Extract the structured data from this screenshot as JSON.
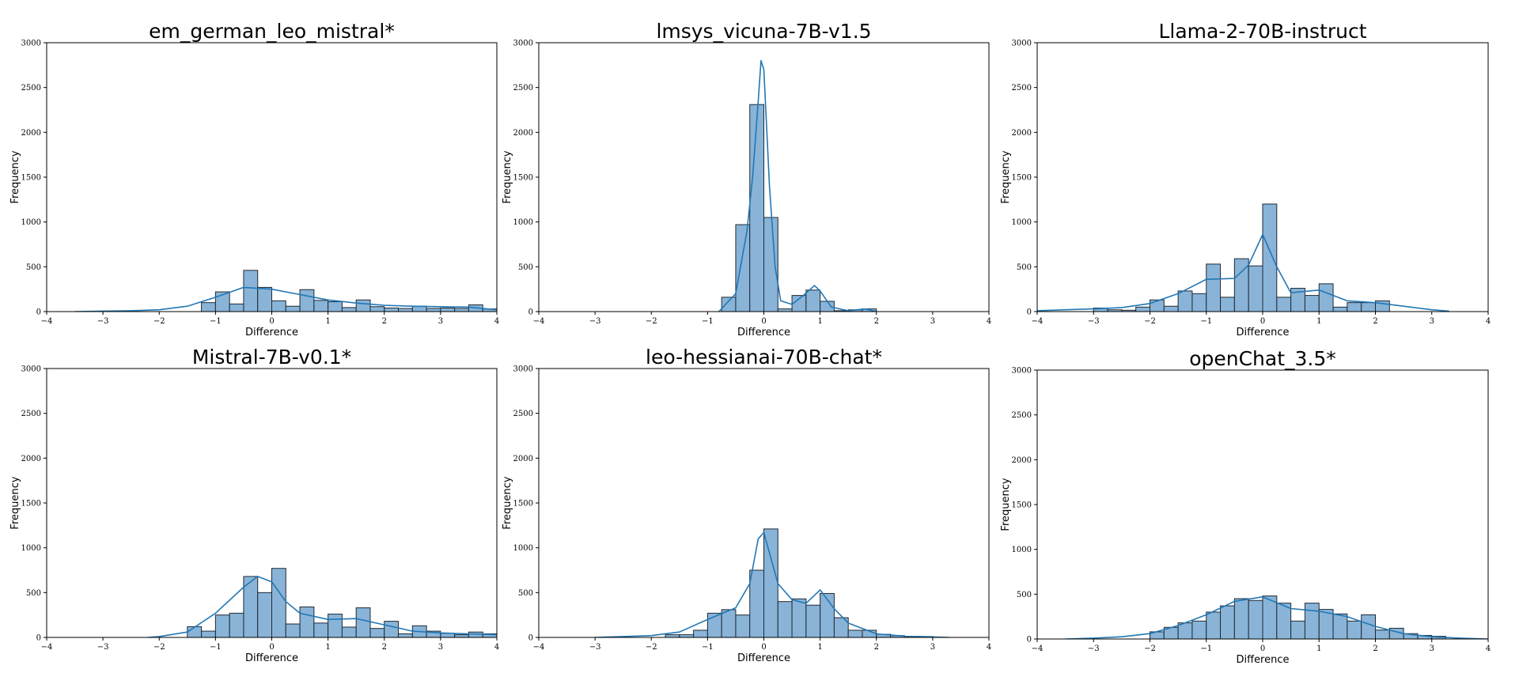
{
  "chart_data": [
    {
      "type": "histogram",
      "title": "em_german_leo_mistral*",
      "xlabel": "Difference",
      "ylabel": "Frequency",
      "xlim": [
        -4,
        4
      ],
      "ylim": [
        0,
        3000
      ],
      "xticks": [
        "−4",
        "−3",
        "−2",
        "−1",
        "0",
        "1",
        "2",
        "3",
        "4"
      ],
      "yticks": [
        "0",
        "500",
        "1000",
        "1500",
        "2000",
        "2500",
        "3000"
      ],
      "bar_edges": [
        -1.25,
        -1.0,
        -0.75,
        -0.5,
        -0.25,
        0.0,
        0.25,
        0.5,
        0.75,
        1.0,
        1.25,
        1.5,
        1.75,
        2.0,
        2.25,
        2.5,
        2.75,
        3.0,
        3.25,
        3.5,
        3.75,
        4.0
      ],
      "values": [
        100,
        220,
        85,
        460,
        270,
        120,
        60,
        245,
        125,
        110,
        45,
        130,
        55,
        40,
        35,
        60,
        35,
        40,
        35,
        75,
        30
      ],
      "kde_x": [
        -3.5,
        -3.0,
        -2.5,
        -2.0,
        -1.5,
        -1.0,
        -0.5,
        0.0,
        0.5,
        1.0,
        1.5,
        2.0,
        2.5,
        3.0,
        3.5,
        4.0
      ],
      "kde_y": [
        0,
        5,
        10,
        20,
        60,
        160,
        270,
        250,
        190,
        130,
        95,
        70,
        60,
        55,
        50,
        20
      ]
    },
    {
      "type": "histogram",
      "title": "lmsys_vicuna-7B-v1.5",
      "xlabel": "Difference",
      "ylabel": "Frequency",
      "xlim": [
        -4,
        4
      ],
      "ylim": [
        0,
        3000
      ],
      "xticks": [
        "−4",
        "−3",
        "−2",
        "−1",
        "0",
        "1",
        "2",
        "3",
        "4"
      ],
      "yticks": [
        "0",
        "500",
        "1000",
        "1500",
        "2000",
        "2500",
        "3000"
      ],
      "bar_edges": [
        -0.75,
        -0.5,
        -0.25,
        0.0,
        0.25,
        0.5,
        0.75,
        1.0,
        1.25,
        1.5,
        1.75,
        2.0
      ],
      "values": [
        160,
        970,
        2310,
        1050,
        30,
        180,
        240,
        115,
        10,
        20,
        30
      ],
      "kde_x": [
        -0.8,
        -0.5,
        -0.3,
        -0.2,
        -0.1,
        -0.05,
        0.0,
        0.1,
        0.2,
        0.3,
        0.5,
        0.7,
        0.9,
        1.0,
        1.2,
        1.5,
        1.8,
        2.0
      ],
      "kde_y": [
        0,
        200,
        900,
        1500,
        2350,
        2800,
        2700,
        1400,
        500,
        120,
        80,
        180,
        290,
        230,
        50,
        10,
        30,
        0
      ]
    },
    {
      "type": "histogram",
      "title": "Llama-2-70B-instruct",
      "xlabel": "Difference",
      "ylabel": "Frequency",
      "xlim": [
        -4,
        4
      ],
      "ylim": [
        0,
        3000
      ],
      "xticks": [
        "−4",
        "−3",
        "−2",
        "−1",
        "0",
        "1",
        "2",
        "3",
        "4"
      ],
      "yticks": [
        "0",
        "500",
        "1000",
        "1500",
        "2000",
        "2500",
        "3000"
      ],
      "bar_edges": [
        -3.0,
        -2.75,
        -2.5,
        -2.25,
        -2.0,
        -1.75,
        -1.5,
        -1.25,
        -1.0,
        -0.75,
        -0.5,
        -0.25,
        0.0,
        0.25,
        0.5,
        0.75,
        1.0,
        1.25,
        1.5,
        1.75,
        2.0,
        2.25
      ],
      "values": [
        40,
        20,
        15,
        50,
        130,
        60,
        230,
        200,
        530,
        160,
        590,
        510,
        1200,
        160,
        260,
        180,
        310,
        50,
        100,
        100,
        120
      ],
      "kde_x": [
        -4.0,
        -3.5,
        -3.0,
        -2.5,
        -2.0,
        -1.5,
        -1.0,
        -0.5,
        -0.25,
        0.0,
        0.25,
        0.5,
        1.0,
        1.5,
        2.0,
        2.5,
        3.0,
        3.3
      ],
      "kde_y": [
        10,
        20,
        30,
        45,
        90,
        200,
        360,
        370,
        520,
        860,
        500,
        210,
        240,
        120,
        100,
        60,
        20,
        5
      ]
    },
    {
      "type": "histogram",
      "title": "Mistral-7B-v0.1*",
      "xlabel": "Difference",
      "ylabel": "Frequency",
      "xlim": [
        -4,
        4
      ],
      "ylim": [
        0,
        3000
      ],
      "xticks": [
        "−4",
        "−3",
        "−2",
        "−1",
        "0",
        "1",
        "2",
        "3",
        "4"
      ],
      "yticks": [
        "0",
        "500",
        "1000",
        "1500",
        "2000",
        "2500",
        "3000"
      ],
      "bar_edges": [
        -1.5,
        -1.25,
        -1.0,
        -0.75,
        -0.5,
        -0.25,
        0.0,
        0.25,
        0.5,
        0.75,
        1.0,
        1.25,
        1.5,
        1.75,
        2.0,
        2.25,
        2.5,
        2.75,
        3.0,
        3.25,
        3.5,
        3.75,
        4.0
      ],
      "values": [
        120,
        70,
        250,
        270,
        680,
        500,
        770,
        150,
        340,
        160,
        260,
        115,
        330,
        100,
        180,
        40,
        130,
        70,
        45,
        30,
        60,
        40
      ],
      "kde_x": [
        -2.2,
        -2.0,
        -1.5,
        -1.0,
        -0.5,
        -0.25,
        0.0,
        0.25,
        0.5,
        1.0,
        1.5,
        2.0,
        2.5,
        3.0,
        3.5,
        4.0
      ],
      "kde_y": [
        0,
        10,
        60,
        270,
        560,
        680,
        620,
        400,
        270,
        200,
        210,
        140,
        70,
        50,
        40,
        30
      ]
    },
    {
      "type": "histogram",
      "title": "leo-hessianai-70B-chat*",
      "xlabel": "Difference",
      "ylabel": "Frequency",
      "xlim": [
        -4,
        4
      ],
      "ylim": [
        0,
        3000
      ],
      "xticks": [
        "−4",
        "−3",
        "−2",
        "−1",
        "0",
        "1",
        "2",
        "3",
        "4"
      ],
      "yticks": [
        "0",
        "500",
        "1000",
        "1500",
        "2000",
        "2500",
        "3000"
      ],
      "bar_edges": [
        -1.75,
        -1.5,
        -1.25,
        -1.0,
        -0.75,
        -0.5,
        -0.25,
        0.0,
        0.25,
        0.5,
        0.75,
        1.0,
        1.25,
        1.5,
        1.75,
        2.0,
        2.25,
        2.5,
        2.75,
        3.0
      ],
      "values": [
        30,
        30,
        80,
        270,
        310,
        250,
        750,
        1210,
        400,
        430,
        360,
        490,
        220,
        80,
        80,
        35,
        20,
        10,
        10
      ],
      "kde_x": [
        -3.0,
        -2.5,
        -2.0,
        -1.5,
        -1.0,
        -0.5,
        -0.25,
        -0.1,
        0.0,
        0.25,
        0.5,
        0.75,
        1.0,
        1.25,
        1.5,
        2.0,
        2.5,
        3.0,
        3.3
      ],
      "kde_y": [
        0,
        10,
        20,
        60,
        200,
        330,
        600,
        1100,
        1170,
        600,
        420,
        380,
        530,
        320,
        160,
        40,
        15,
        5,
        0
      ]
    },
    {
      "type": "histogram",
      "title": "openChat_3.5*",
      "xlabel": "Difference",
      "ylabel": "Frequency",
      "xlim": [
        -4,
        4
      ],
      "ylim": [
        0,
        3000
      ],
      "xticks": [
        "−4",
        "−3",
        "−2",
        "−1",
        "0",
        "1",
        "2",
        "3",
        "4"
      ],
      "yticks": [
        "0",
        "500",
        "1000",
        "1500",
        "2000",
        "2500",
        "3000"
      ],
      "bar_edges": [
        -2.0,
        -1.75,
        -1.5,
        -1.25,
        -1.0,
        -0.75,
        -0.5,
        -0.25,
        0.0,
        0.25,
        0.5,
        0.75,
        1.0,
        1.25,
        1.5,
        1.75,
        2.0,
        2.25,
        2.5,
        2.75,
        3.0,
        3.25
      ],
      "values": [
        80,
        130,
        180,
        200,
        300,
        370,
        450,
        430,
        480,
        400,
        200,
        400,
        330,
        280,
        200,
        270,
        100,
        120,
        60,
        40,
        30
      ],
      "kde_x": [
        -3.5,
        -3.0,
        -2.5,
        -2.0,
        -1.5,
        -1.0,
        -0.5,
        0.0,
        0.5,
        1.0,
        1.5,
        2.0,
        2.5,
        3.0,
        3.5,
        4.0
      ],
      "kde_y": [
        0,
        10,
        25,
        60,
        150,
        270,
        420,
        470,
        340,
        310,
        250,
        140,
        60,
        25,
        10,
        0
      ]
    }
  ],
  "style": {
    "bar_fill": "#89b4d8",
    "bar_edge": "#1f2933",
    "kde_color": "#2277b4"
  }
}
